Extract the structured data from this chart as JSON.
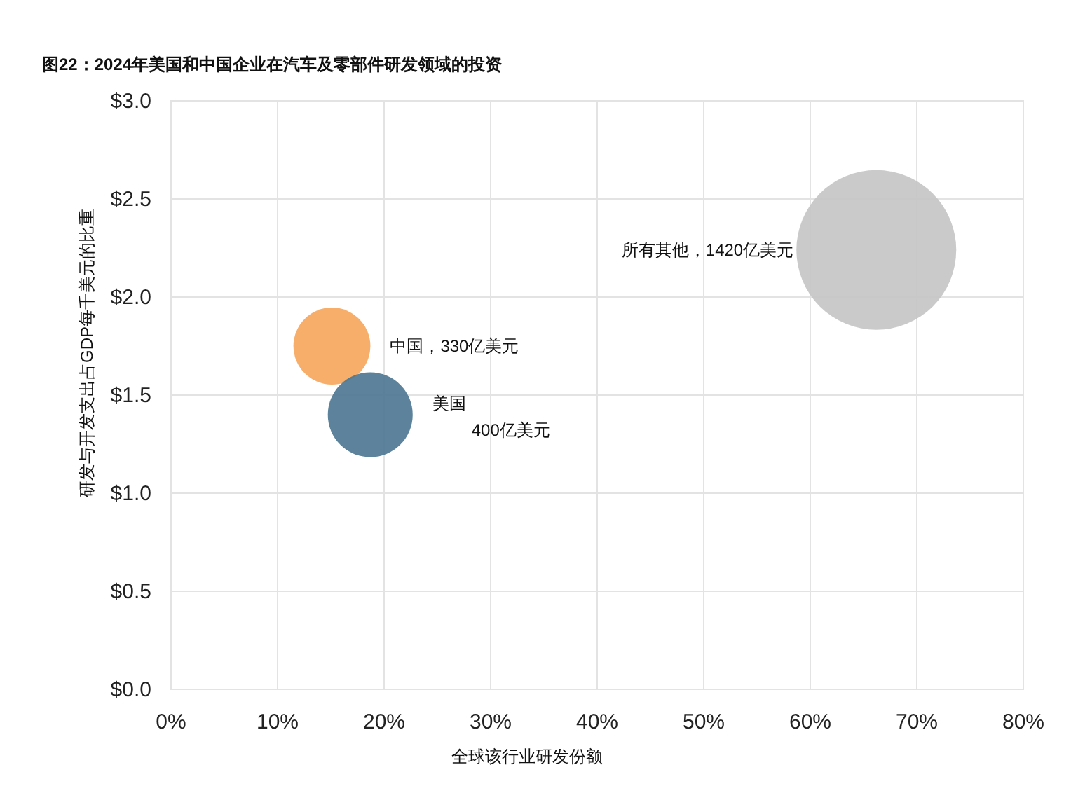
{
  "chart_data": {
    "type": "bubble",
    "title": "图22：2024年美国和中国企业在汽车及零部件研发领域的投资",
    "xlabel": "全球该行业研发份额",
    "ylabel": "研发与开发支出占GDP每千美元的比重",
    "series": [
      {
        "name": "中国，330亿美元",
        "color": "#f5a55a",
        "x": [
          15.1
        ],
        "values": [
          1.75
        ],
        "sizes": [
          0.232
        ]
      },
      {
        "name": "美国\n400亿美元",
        "color": "#4a7690",
        "x": [
          18.7
        ],
        "values": [
          1.4
        ],
        "sizes": [
          0.282
        ]
      },
      {
        "name": "所有其他，1420亿美元",
        "color": "#c4c4c4",
        "x": [
          66.2
        ],
        "values": [
          2.24
        ],
        "sizes": [
          1
        ]
      }
    ],
    "xlim": [
      0,
      80
    ],
    "ylim": [
      0,
      3
    ],
    "xticks": [
      {
        "value": 0,
        "label": "0%"
      },
      {
        "value": 10,
        "label": "10%"
      },
      {
        "value": 20,
        "label": "20%"
      },
      {
        "value": 30,
        "label": "30%"
      },
      {
        "value": 40,
        "label": "40%"
      },
      {
        "value": 50,
        "label": "50%"
      },
      {
        "value": 60,
        "label": "60%"
      },
      {
        "value": 70,
        "label": "70%"
      },
      {
        "value": 80,
        "label": "80%"
      }
    ],
    "yticks": [
      {
        "value": 0,
        "label": "$0.0"
      },
      {
        "value": 0.5,
        "label": "$0.5"
      },
      {
        "value": 1,
        "label": "$1.0"
      },
      {
        "value": 1.5,
        "label": "$1.5"
      },
      {
        "value": 2,
        "label": "$2.0"
      },
      {
        "value": 2.5,
        "label": "$2.5"
      },
      {
        "value": 3,
        "label": "$3.0"
      }
    ],
    "grid": true
  }
}
